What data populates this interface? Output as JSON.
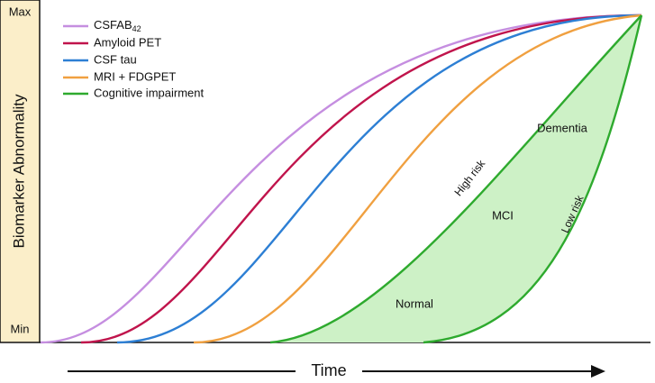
{
  "axis": {
    "max": "Max",
    "min": "Min",
    "y_label": "Biomarker Abnormality",
    "x_label": "Time"
  },
  "legend": [
    {
      "label": "CSFAB",
      "subscript": "42"
    },
    {
      "label": "Amyloid PET"
    },
    {
      "label": "CSF tau"
    },
    {
      "label": "MRI + FDGPET"
    },
    {
      "label": "Cognitive impairment"
    }
  ],
  "regions": {
    "dementia": "Dementia",
    "mci": "MCI",
    "normal": "Normal"
  },
  "risk": {
    "high": "High risk",
    "low": "Low risk"
  }
}
